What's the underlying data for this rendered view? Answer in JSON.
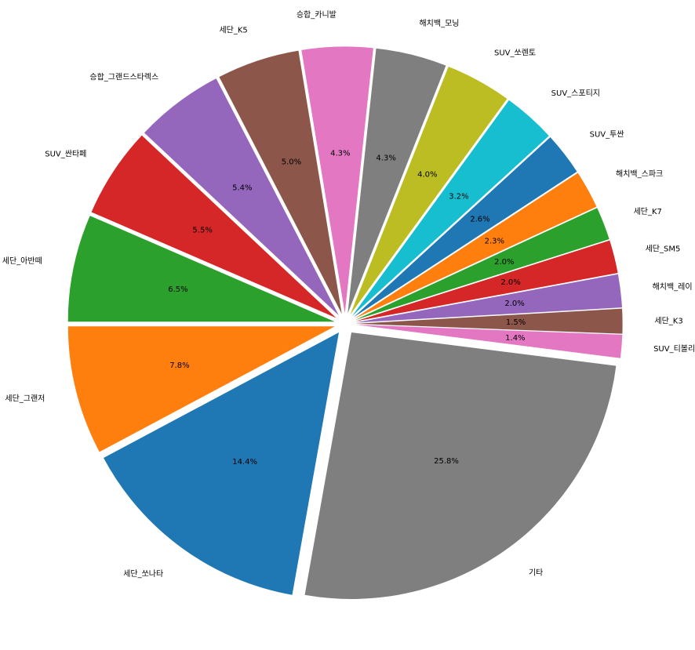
{
  "chart_data": {
    "type": "pie",
    "start_angle_deg": 180,
    "direction": "counterclockwise",
    "exploded": true,
    "slices": [
      {
        "label": "세단_그랜저",
        "value": 7.8,
        "pct": "7.8%",
        "color": "#ff7f0e"
      },
      {
        "label": "세단_쏘나타",
        "value": 14.4,
        "pct": "14.4%",
        "color": "#1f77b4"
      },
      {
        "label": "기타",
        "value": 25.8,
        "pct": "25.8%",
        "color": "#7f7f7f"
      },
      {
        "label": "SUV_티볼리",
        "value": 1.4,
        "pct": "1.4%",
        "color": "#e377c2"
      },
      {
        "label": "세단_K3",
        "value": 1.5,
        "pct": "1.5%",
        "color": "#8c564b"
      },
      {
        "label": "해치백_레이",
        "value": 2.0,
        "pct": "2.0%",
        "color": "#9467bd"
      },
      {
        "label": "세단_SM5",
        "value": 2.0,
        "pct": "2.0%",
        "color": "#d62728"
      },
      {
        "label": "세단_K7",
        "value": 2.0,
        "pct": "2.0%",
        "color": "#2ca02c"
      },
      {
        "label": "해치백_스파크",
        "value": 2.3,
        "pct": "2.3%",
        "color": "#ff7f0e"
      },
      {
        "label": "SUV_투싼",
        "value": 2.6,
        "pct": "2.6%",
        "color": "#1f77b4"
      },
      {
        "label": "SUV_스포티지",
        "value": 3.2,
        "pct": "3.2%",
        "color": "#17becf"
      },
      {
        "label": "SUV_쏘렌토",
        "value": 4.0,
        "pct": "4.0%",
        "color": "#bcbd22"
      },
      {
        "label": "해치백_모닝",
        "value": 4.3,
        "pct": "4.3%",
        "color": "#7f7f7f"
      },
      {
        "label": "승합_카니발",
        "value": 4.3,
        "pct": "4.3%",
        "color": "#e377c2"
      },
      {
        "label": "세단_K5",
        "value": 5.0,
        "pct": "5.0%",
        "color": "#8c564b"
      },
      {
        "label": "승합_그랜드스타렉스",
        "value": 5.4,
        "pct": "5.4%",
        "color": "#9467bd"
      },
      {
        "label": "SUV_싼타페",
        "value": 5.5,
        "pct": "5.5%",
        "color": "#d62728"
      },
      {
        "label": "세단_아반떼",
        "value": 6.5,
        "pct": "6.5%",
        "color": "#2ca02c"
      }
    ]
  }
}
